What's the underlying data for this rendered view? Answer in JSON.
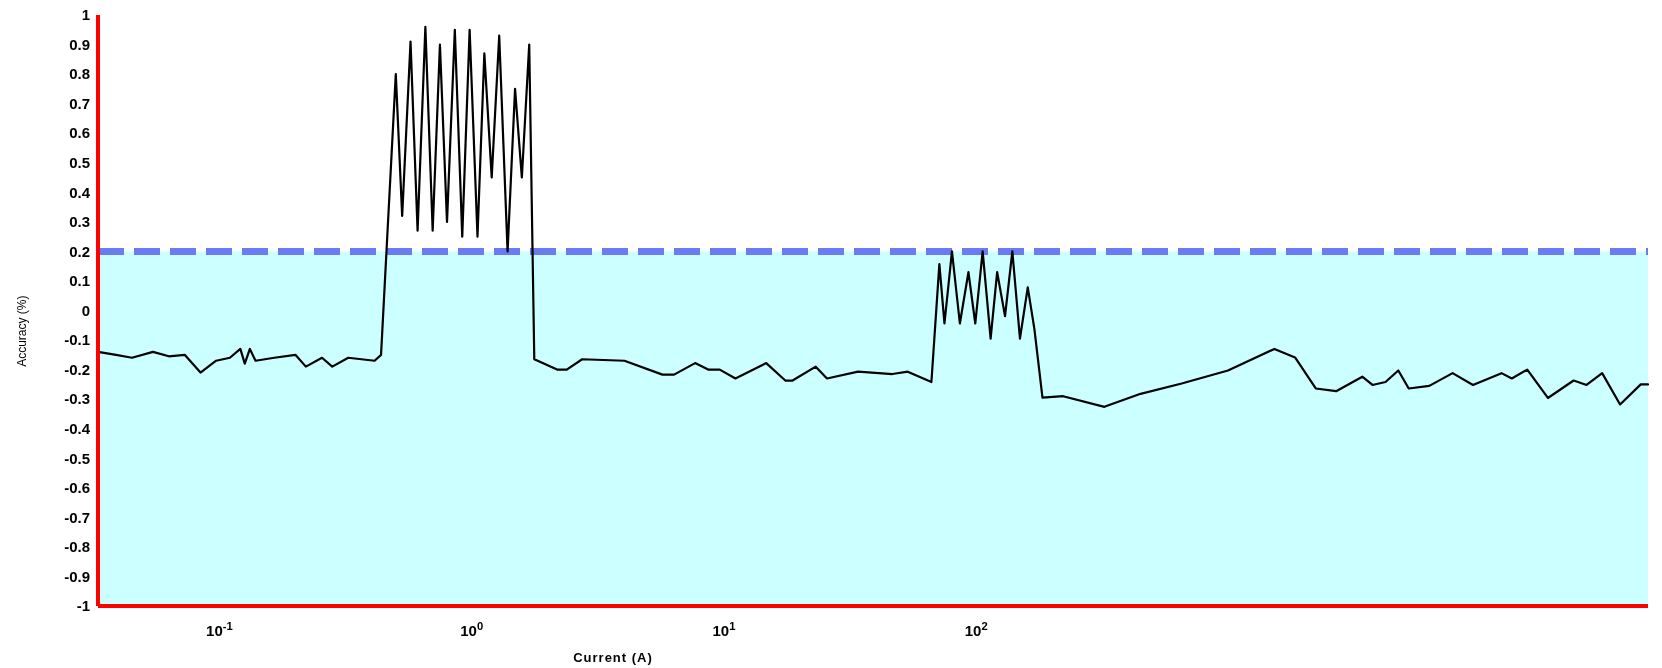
{
  "chart_data": {
    "type": "line",
    "xlabel": "Current (A)",
    "ylabel": "Accuracy (%)",
    "log": "x",
    "grid": false,
    "marker": "none",
    "line_style": "solid",
    "xlim": [
      0.033,
      46000
    ],
    "xticks": [
      {
        "value": 0.1,
        "label": "10$^{-1}$"
      },
      {
        "value": 1,
        "label": "10$^{0}$"
      },
      {
        "value": 10,
        "label": "10$^{1}$"
      },
      {
        "value": 100,
        "label": "10$^{2}$"
      }
    ],
    "ylim": [
      -1,
      1
    ],
    "yticks": [
      -1,
      -0.9,
      -0.8,
      -0.7,
      -0.6,
      -0.5,
      -0.4,
      -0.3,
      -0.2,
      -0.1,
      0,
      0.1,
      0.2,
      0.3,
      0.4,
      0.5,
      0.6,
      0.7,
      0.8,
      0.9,
      1
    ],
    "bands": [
      {
        "axis": "y",
        "from": -1,
        "to": 0.2,
        "color": "#ccffff"
      }
    ],
    "ref_lines": [
      {
        "axis": "y",
        "value": 0.2,
        "color": "#6b7bf5",
        "line_style": "dashed"
      }
    ],
    "series": [
      {
        "color": "#000000",
        "x": [
          0.033,
          0.0389,
          0.045,
          0.0545,
          0.063,
          0.0728,
          0.0841,
          0.097,
          0.11,
          0.121,
          0.126,
          0.132,
          0.139,
          0.165,
          0.2,
          0.22,
          0.255,
          0.28,
          0.324,
          0.412,
          0.437,
          0.5,
          0.53,
          0.572,
          0.61,
          0.655,
          0.7,
          0.748,
          0.798,
          0.857,
          0.917,
          0.981,
          1.054,
          1.122,
          1.2,
          1.285,
          1.387,
          1.485,
          1.58,
          1.69,
          1.77,
          2.18,
          2.38,
          2.74,
          4.03,
          5.7,
          6.34,
          7.68,
          8.65,
          9.62,
          11.1,
          14.7,
          17.5,
          18.7,
          23.1,
          25.6,
          34,
          46.5,
          53.5,
          66.4,
          71.4,
          74.8,
          80.1,
          86.1,
          93.1,
          99.1,
          106,
          114,
          121,
          130,
          139,
          149,
          160,
          170,
          183,
          221,
          322,
          448,
          652,
          995,
          1520,
          1835,
          2220,
          2670,
          3390,
          3720,
          4190,
          4710,
          5180,
          6250,
          7730,
          9310,
          12080,
          13270,
          15280,
          18450,
          23330,
          26260,
          30270,
          35650,
          43060,
          46000
        ],
        "values": [
          -0.14,
          -0.15,
          -0.16,
          -0.14,
          -0.155,
          -0.15,
          -0.21,
          -0.17,
          -0.16,
          -0.13,
          -0.18,
          -0.13,
          -0.17,
          -0.16,
          -0.15,
          -0.19,
          -0.16,
          -0.19,
          -0.16,
          -0.17,
          -0.15,
          0.8,
          0.32,
          0.91,
          0.27,
          0.96,
          0.27,
          0.9,
          0.3,
          0.95,
          0.25,
          0.95,
          0.25,
          0.87,
          0.45,
          0.93,
          0.2,
          0.75,
          0.45,
          0.9,
          -0.165,
          -0.2,
          -0.2,
          -0.165,
          -0.17,
          -0.217,
          -0.217,
          -0.178,
          -0.2,
          -0.2,
          -0.23,
          -0.178,
          -0.237,
          -0.237,
          -0.19,
          -0.23,
          -0.207,
          -0.215,
          -0.207,
          -0.242,
          0.157,
          -0.044,
          0.2,
          -0.044,
          0.13,
          -0.044,
          0.2,
          -0.095,
          0.13,
          -0.019,
          0.2,
          -0.095,
          0.078,
          -0.063,
          -0.295,
          -0.29,
          -0.326,
          -0.282,
          -0.247,
          -0.203,
          -0.13,
          -0.159,
          -0.264,
          -0.273,
          -0.224,
          -0.252,
          -0.242,
          -0.203,
          -0.264,
          -0.255,
          -0.212,
          -0.252,
          -0.212,
          -0.23,
          -0.2,
          -0.296,
          -0.237,
          -0.252,
          -0.212,
          -0.318,
          -0.25,
          -0.25
        ]
      }
    ]
  }
}
